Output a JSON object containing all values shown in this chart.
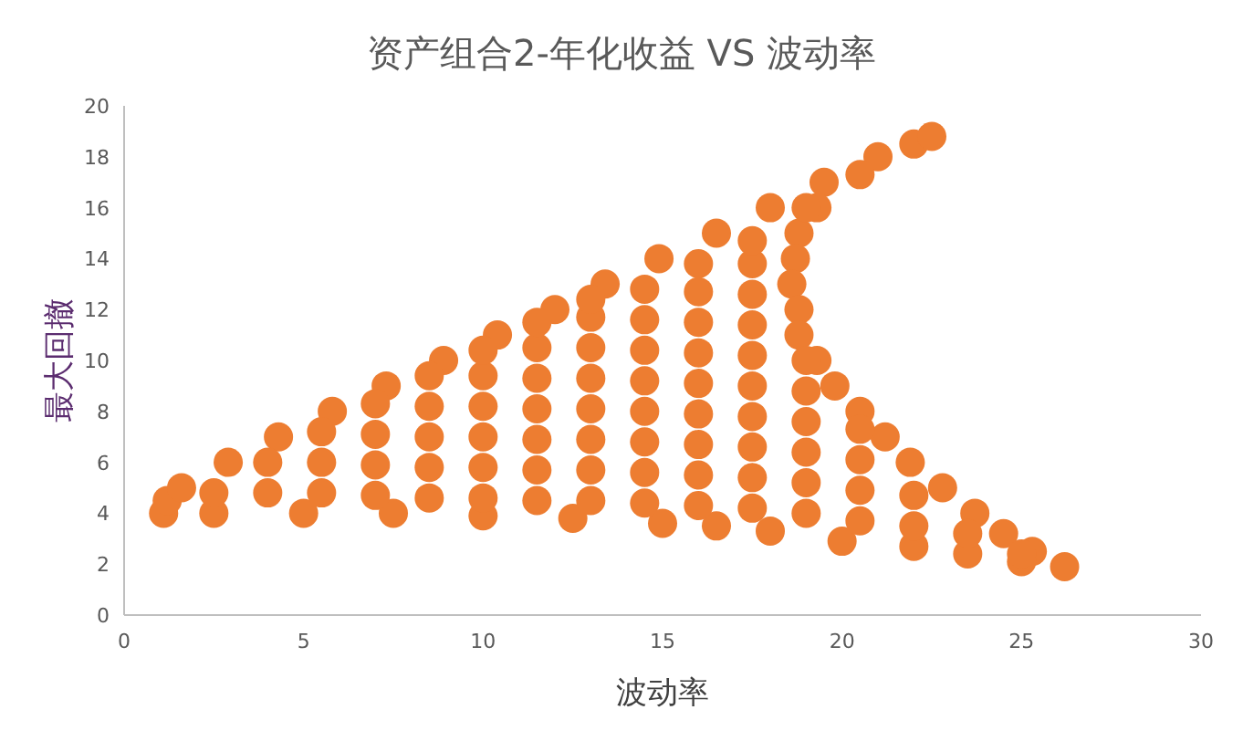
{
  "chart_data": {
    "type": "scatter",
    "title": "资产组合2-年化收益 VS 波动率",
    "xlabel": "波动率",
    "ylabel": "最大回撤",
    "xlim": [
      0,
      30
    ],
    "xticks": [
      0,
      5,
      10,
      15,
      20,
      25,
      30
    ],
    "ylim": [
      0,
      20
    ],
    "yticks": [
      0,
      2,
      4,
      6,
      8,
      10,
      12,
      14,
      16,
      18,
      20
    ],
    "grid": false,
    "marker": "circle",
    "series": [
      {
        "color": "#ed7d31",
        "x": [
          1.1,
          1.2,
          1.6,
          2.9,
          4.3,
          5.8,
          7.3,
          8.9,
          10.4,
          12.0,
          13.4,
          14.9,
          16.5,
          18.0,
          19.5,
          21.0,
          22.0,
          22.5,
          20.5,
          19.3,
          18.8,
          18.7,
          18.6,
          18.8,
          18.8,
          19.3,
          19.8,
          20.5,
          21.2,
          21.9,
          22.8,
          23.7,
          24.5,
          25.3,
          26.2,
          25.0,
          23.5,
          22.0,
          20.0,
          18.0,
          16.5,
          15.0,
          12.5,
          10.0,
          7.5,
          5.0,
          2.5,
          2.5,
          4,
          4,
          5.5,
          5.5,
          5.5,
          7,
          7,
          7,
          7,
          8.5,
          8.5,
          8.5,
          8.5,
          8.5,
          10,
          10,
          10,
          10,
          10,
          10,
          11.5,
          11.5,
          11.5,
          11.5,
          11.5,
          11.5,
          11.5,
          13,
          13,
          13,
          13,
          13,
          13,
          13,
          13,
          14.5,
          14.5,
          14.5,
          14.5,
          14.5,
          14.5,
          14.5,
          14.5,
          16,
          16,
          16,
          16,
          16,
          16,
          16,
          16,
          16,
          17.5,
          17.5,
          17.5,
          17.5,
          17.5,
          17.5,
          17.5,
          17.5,
          17.5,
          17.5,
          19,
          19,
          19,
          19,
          19,
          19,
          19,
          20.5,
          20.5,
          20.5,
          20.5,
          22,
          22,
          23.5,
          25
        ],
        "values": [
          4.0,
          4.5,
          5.0,
          6.0,
          7.0,
          8.0,
          9.0,
          10.0,
          11.0,
          12.0,
          13.0,
          14.0,
          15.0,
          16.0,
          17.0,
          18.0,
          18.5,
          18.8,
          17.3,
          16.0,
          15.0,
          14.0,
          13.0,
          12.0,
          11.0,
          10.0,
          9.0,
          8.0,
          7.0,
          6.0,
          5.0,
          4.0,
          3.2,
          2.5,
          1.9,
          2.1,
          2.4,
          2.7,
          2.9,
          3.3,
          3.5,
          3.6,
          3.8,
          3.9,
          4.0,
          4.0,
          4.0,
          4.8,
          4.8,
          6.0,
          4.8,
          6.0,
          7.2,
          4.7,
          5.9,
          7.1,
          8.3,
          4.6,
          5.8,
          7.0,
          8.2,
          9.4,
          4.6,
          5.8,
          7.0,
          8.2,
          9.4,
          10.4,
          4.5,
          5.7,
          6.9,
          8.1,
          9.3,
          10.5,
          11.5,
          4.5,
          5.7,
          6.9,
          8.1,
          9.3,
          10.5,
          11.7,
          12.4,
          4.4,
          5.6,
          6.8,
          8.0,
          9.2,
          10.4,
          11.6,
          12.8,
          4.3,
          5.5,
          6.7,
          7.9,
          9.1,
          10.3,
          11.5,
          12.7,
          13.8,
          4.2,
          5.4,
          6.6,
          7.8,
          9.0,
          10.2,
          11.4,
          12.6,
          13.8,
          14.7,
          4.0,
          5.2,
          6.4,
          7.6,
          8.8,
          10.0,
          16.0,
          3.7,
          4.9,
          6.1,
          7.3,
          3.5,
          4.7,
          3.2,
          2.4
        ]
      }
    ]
  }
}
